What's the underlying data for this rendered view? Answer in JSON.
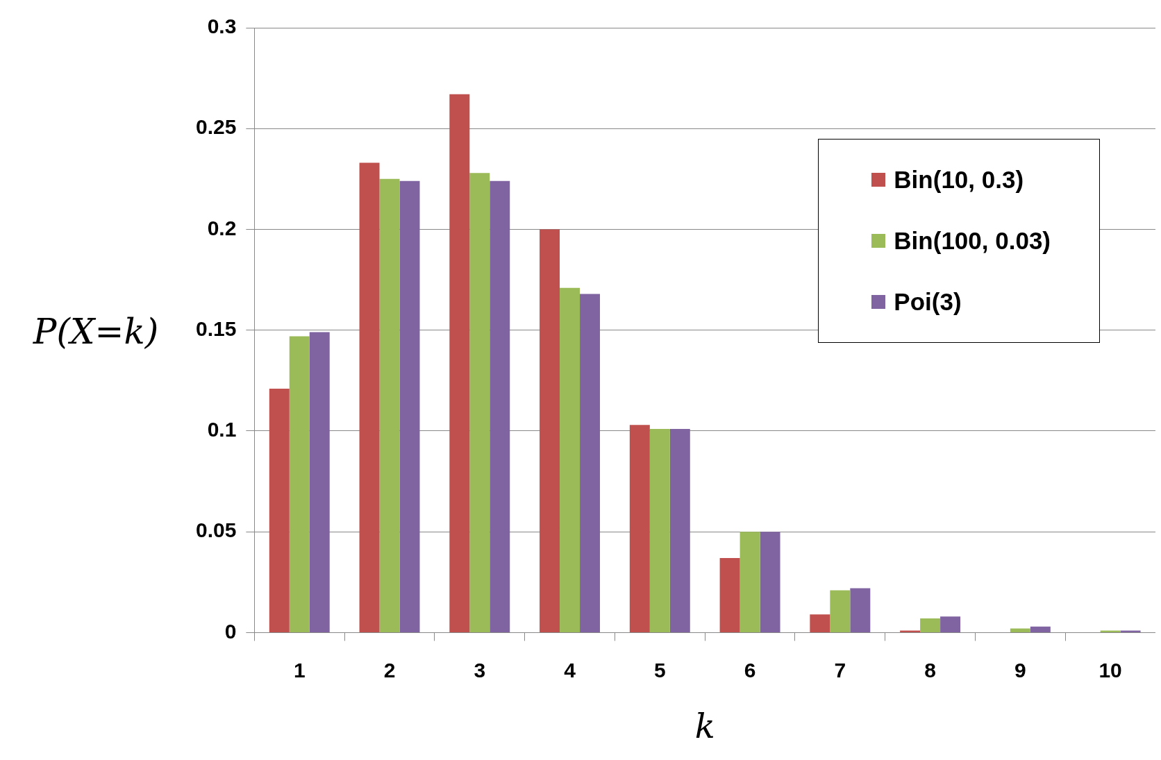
{
  "chart_data": {
    "type": "bar",
    "xlabel": "k",
    "ylabel": "P(X=k)",
    "categories": [
      "1",
      "2",
      "3",
      "4",
      "5",
      "6",
      "7",
      "8",
      "9",
      "10"
    ],
    "series": [
      {
        "name": "Bin(10, 0.3)",
        "color": "#c0504d",
        "values": [
          0.121,
          0.233,
          0.267,
          0.2,
          0.103,
          0.037,
          0.009,
          0.001,
          0.0,
          0.0
        ]
      },
      {
        "name": "Bin(100, 0.03)",
        "color": "#9bbb59",
        "values": [
          0.147,
          0.225,
          0.228,
          0.171,
          0.101,
          0.05,
          0.021,
          0.007,
          0.002,
          0.001
        ]
      },
      {
        "name": "Poi(3)",
        "color": "#8064a2",
        "values": [
          0.149,
          0.224,
          0.224,
          0.168,
          0.101,
          0.05,
          0.022,
          0.008,
          0.003,
          0.001
        ]
      }
    ],
    "ylim": [
      0,
      0.3
    ],
    "yticks": [
      0,
      0.05,
      0.1,
      0.15,
      0.2,
      0.25,
      0.3
    ],
    "grid": "y",
    "legend": "top right"
  }
}
